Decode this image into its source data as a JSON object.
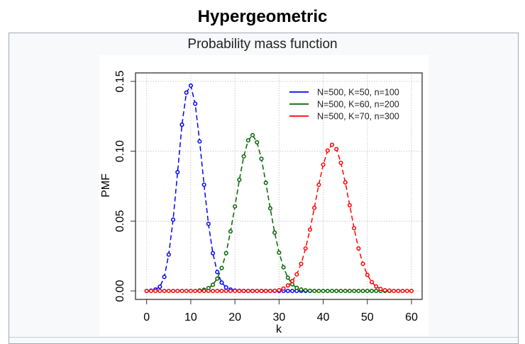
{
  "infobox": {
    "title": "Hypergeometric",
    "caption": "Probability mass function"
  },
  "chart_data": {
    "type": "line",
    "title": "",
    "xlabel": "k",
    "ylabel": "PMF",
    "xlim": [
      0,
      60
    ],
    "ylim": [
      0,
      0.15
    ],
    "xticks": [
      "0",
      "10",
      "20",
      "30",
      "40",
      "50",
      "60"
    ],
    "yticks": [
      "0.00",
      "0.05",
      "0.10",
      "0.15"
    ],
    "grid": true,
    "legend_position": "top-right",
    "series": [
      {
        "name": "N=500, K=50, n=100",
        "color": "#0000ff",
        "x": [
          0,
          1,
          2,
          3,
          4,
          5,
          6,
          7,
          8,
          9,
          10,
          11,
          12,
          13,
          14,
          15,
          16,
          17,
          18,
          19,
          20,
          21,
          22,
          23,
          24,
          25,
          26,
          27,
          28,
          29,
          30,
          31,
          32,
          33,
          34,
          35,
          36,
          37
        ],
        "values": [
          0.0,
          0.0002,
          0.001,
          0.003,
          0.01,
          0.026,
          0.051,
          0.085,
          0.119,
          0.142,
          0.147,
          0.134,
          0.107,
          0.076,
          0.048,
          0.027,
          0.0135,
          0.006,
          0.0025,
          0.001,
          0.0003,
          0.0001,
          0,
          0,
          0,
          0,
          0,
          0,
          0,
          0,
          0,
          0,
          0,
          0,
          0,
          0,
          0,
          0
        ]
      },
      {
        "name": "N=500, K=60, n=200",
        "color": "#006400",
        "x": [
          12,
          13,
          14,
          15,
          16,
          17,
          18,
          19,
          20,
          21,
          22,
          23,
          24,
          25,
          26,
          27,
          28,
          29,
          30,
          31,
          32,
          33,
          34,
          35,
          36,
          37,
          38,
          39,
          40,
          41,
          42,
          43,
          44,
          45,
          46,
          47,
          48,
          49,
          50,
          51,
          52,
          53,
          54,
          55
        ],
        "values": [
          0.0003,
          0.0008,
          0.002,
          0.0044,
          0.0088,
          0.0164,
          0.027,
          0.0426,
          0.0605,
          0.0796,
          0.0963,
          0.1078,
          0.1115,
          0.1064,
          0.0946,
          0.0774,
          0.0591,
          0.0417,
          0.0274,
          0.0169,
          0.0095,
          0.0047,
          0.0022,
          0.001,
          0.0004,
          0.0001,
          0,
          0,
          0,
          0,
          0,
          0,
          0,
          0,
          0,
          0,
          0,
          0,
          0,
          0,
          0,
          0,
          0,
          0
        ]
      },
      {
        "name": "N=500, K=70, n=300",
        "color": "#ff0000",
        "x": [
          0,
          1,
          2,
          3,
          4,
          5,
          6,
          7,
          8,
          9,
          10,
          11,
          12,
          13,
          14,
          15,
          16,
          17,
          18,
          19,
          20,
          21,
          22,
          23,
          24,
          25,
          26,
          27,
          28,
          29,
          30,
          31,
          32,
          33,
          34,
          35,
          36,
          37,
          38,
          39,
          40,
          41,
          42,
          43,
          44,
          45,
          46,
          47,
          48,
          49,
          50,
          51,
          52,
          53,
          54,
          55,
          56,
          57,
          58,
          59,
          60
        ],
        "values": [
          0,
          0,
          0,
          0,
          0,
          0,
          0,
          0,
          0,
          0,
          0,
          0,
          0,
          0,
          0,
          0,
          0,
          0,
          0,
          0,
          0,
          0,
          0,
          0,
          0,
          0,
          0,
          0,
          0,
          0.0001,
          0.0005,
          0.0017,
          0.0039,
          0.0071,
          0.0118,
          0.0194,
          0.0304,
          0.0439,
          0.0595,
          0.076,
          0.0904,
          0.1005,
          0.1046,
          0.1015,
          0.0917,
          0.0777,
          0.0613,
          0.0449,
          0.0304,
          0.0194,
          0.0115,
          0.0063,
          0.0032,
          0.0014,
          0.0005,
          0.0002,
          0,
          0,
          0,
          0,
          0
        ]
      }
    ]
  }
}
